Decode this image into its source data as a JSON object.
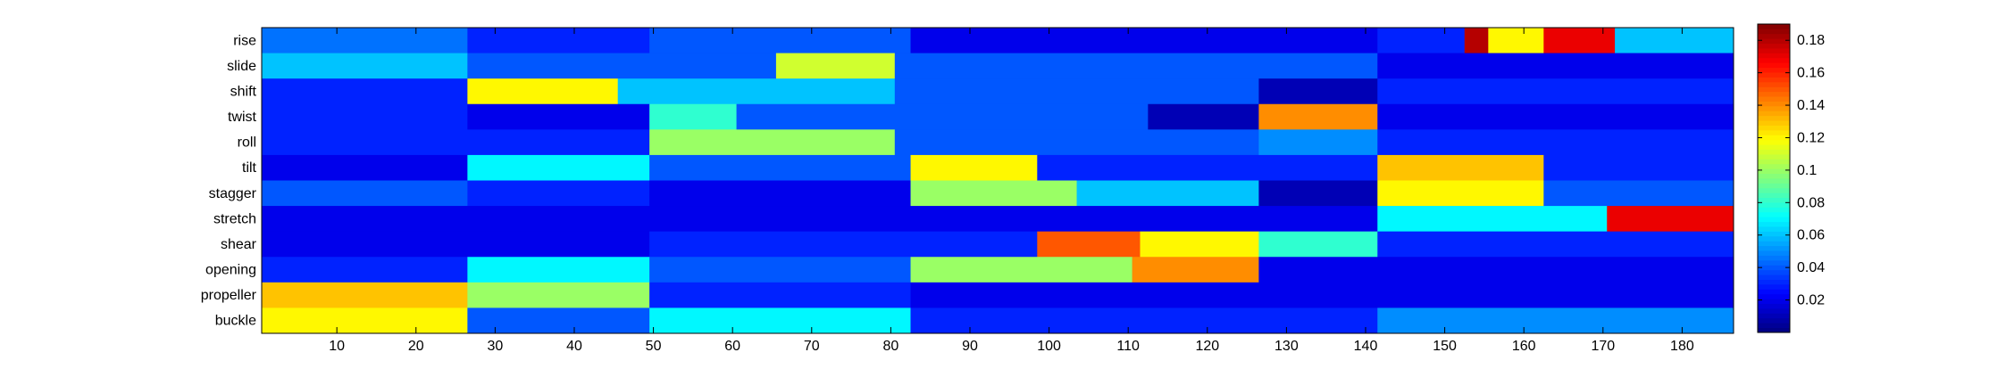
{
  "chart_data": {
    "type": "heatmap",
    "title": "",
    "xlabel": "",
    "ylabel": "",
    "rows": [
      "rise",
      "slide",
      "shift",
      "twist",
      "roll",
      "tilt",
      "stagger",
      "stretch",
      "shear",
      "opening",
      "propeller",
      "buckle"
    ],
    "x_range": [
      1,
      186
    ],
    "x_ticks": [
      10,
      20,
      30,
      40,
      50,
      60,
      70,
      80,
      90,
      100,
      110,
      120,
      130,
      140,
      150,
      160,
      170,
      180
    ],
    "colormap": "jet",
    "color_range": [
      0,
      0.19
    ],
    "colorbar_ticks": [
      0.02,
      0.04,
      0.06,
      0.08,
      0.1,
      0.12,
      0.14,
      0.16,
      0.18
    ],
    "colorbar_tick_labels": [
      "0.02",
      "0.04",
      "0.06",
      "0.08",
      "0.1",
      "0.12",
      "0.14",
      "0.16",
      "0.18"
    ],
    "blocks": [
      {
        "row": "rise",
        "x": [
          1,
          26
        ],
        "value": 0.045
      },
      {
        "row": "rise",
        "x": [
          27,
          49
        ],
        "value": 0.03
      },
      {
        "row": "rise",
        "x": [
          50,
          82
        ],
        "value": 0.04
      },
      {
        "row": "rise",
        "x": [
          83,
          141
        ],
        "value": 0.02
      },
      {
        "row": "rise",
        "x": [
          142,
          152
        ],
        "value": 0.03
      },
      {
        "row": "rise",
        "x": [
          153,
          155
        ],
        "value": 0.18
      },
      {
        "row": "rise",
        "x": [
          156,
          162
        ],
        "value": 0.12
      },
      {
        "row": "rise",
        "x": [
          163,
          171
        ],
        "value": 0.17
      },
      {
        "row": "rise",
        "x": [
          172,
          186
        ],
        "value": 0.06
      },
      {
        "row": "slide",
        "x": [
          1,
          26
        ],
        "value": 0.06
      },
      {
        "row": "slide",
        "x": [
          27,
          65
        ],
        "value": 0.04
      },
      {
        "row": "slide",
        "x": [
          66,
          80
        ],
        "value": 0.11
      },
      {
        "row": "slide",
        "x": [
          81,
          141
        ],
        "value": 0.04
      },
      {
        "row": "slide",
        "x": [
          142,
          186
        ],
        "value": 0.02
      },
      {
        "row": "shift",
        "x": [
          1,
          26
        ],
        "value": 0.03
      },
      {
        "row": "shift",
        "x": [
          27,
          45
        ],
        "value": 0.12
      },
      {
        "row": "shift",
        "x": [
          46,
          80
        ],
        "value": 0.06
      },
      {
        "row": "shift",
        "x": [
          81,
          126
        ],
        "value": 0.04
      },
      {
        "row": "shift",
        "x": [
          127,
          141
        ],
        "value": 0.01
      },
      {
        "row": "shift",
        "x": [
          142,
          186
        ],
        "value": 0.03
      },
      {
        "row": "twist",
        "x": [
          1,
          26
        ],
        "value": 0.03
      },
      {
        "row": "twist",
        "x": [
          27,
          49
        ],
        "value": 0.02
      },
      {
        "row": "twist",
        "x": [
          50,
          60
        ],
        "value": 0.08
      },
      {
        "row": "twist",
        "x": [
          61,
          112
        ],
        "value": 0.04
      },
      {
        "row": "twist",
        "x": [
          113,
          126
        ],
        "value": 0.01
      },
      {
        "row": "twist",
        "x": [
          127,
          141
        ],
        "value": 0.14
      },
      {
        "row": "twist",
        "x": [
          142,
          186
        ],
        "value": 0.02
      },
      {
        "row": "roll",
        "x": [
          1,
          49
        ],
        "value": 0.03
      },
      {
        "row": "roll",
        "x": [
          50,
          80
        ],
        "value": 0.1
      },
      {
        "row": "roll",
        "x": [
          81,
          126
        ],
        "value": 0.04
      },
      {
        "row": "roll",
        "x": [
          127,
          141
        ],
        "value": 0.05
      },
      {
        "row": "roll",
        "x": [
          142,
          186
        ],
        "value": 0.03
      },
      {
        "row": "tilt",
        "x": [
          1,
          26
        ],
        "value": 0.02
      },
      {
        "row": "tilt",
        "x": [
          27,
          49
        ],
        "value": 0.07
      },
      {
        "row": "tilt",
        "x": [
          50,
          82
        ],
        "value": 0.04
      },
      {
        "row": "tilt",
        "x": [
          83,
          98
        ],
        "value": 0.12
      },
      {
        "row": "tilt",
        "x": [
          99,
          141
        ],
        "value": 0.03
      },
      {
        "row": "tilt",
        "x": [
          142,
          162
        ],
        "value": 0.13
      },
      {
        "row": "tilt",
        "x": [
          163,
          186
        ],
        "value": 0.03
      },
      {
        "row": "stagger",
        "x": [
          1,
          26
        ],
        "value": 0.04
      },
      {
        "row": "stagger",
        "x": [
          27,
          49
        ],
        "value": 0.03
      },
      {
        "row": "stagger",
        "x": [
          50,
          82
        ],
        "value": 0.02
      },
      {
        "row": "stagger",
        "x": [
          83,
          103
        ],
        "value": 0.1
      },
      {
        "row": "stagger",
        "x": [
          104,
          126
        ],
        "value": 0.06
      },
      {
        "row": "stagger",
        "x": [
          127,
          141
        ],
        "value": 0.01
      },
      {
        "row": "stagger",
        "x": [
          142,
          162
        ],
        "value": 0.12
      },
      {
        "row": "stagger",
        "x": [
          163,
          186
        ],
        "value": 0.04
      },
      {
        "row": "stretch",
        "x": [
          1,
          141
        ],
        "value": 0.02
      },
      {
        "row": "stretch",
        "x": [
          142,
          170
        ],
        "value": 0.07
      },
      {
        "row": "stretch",
        "x": [
          171,
          186
        ],
        "value": 0.17
      },
      {
        "row": "shear",
        "x": [
          1,
          49
        ],
        "value": 0.02
      },
      {
        "row": "shear",
        "x": [
          50,
          98
        ],
        "value": 0.03
      },
      {
        "row": "shear",
        "x": [
          99,
          111
        ],
        "value": 0.15
      },
      {
        "row": "shear",
        "x": [
          112,
          126
        ],
        "value": 0.12
      },
      {
        "row": "shear",
        "x": [
          127,
          141
        ],
        "value": 0.08
      },
      {
        "row": "shear",
        "x": [
          142,
          186
        ],
        "value": 0.03
      },
      {
        "row": "opening",
        "x": [
          1,
          26
        ],
        "value": 0.03
      },
      {
        "row": "opening",
        "x": [
          27,
          49
        ],
        "value": 0.07
      },
      {
        "row": "opening",
        "x": [
          50,
          82
        ],
        "value": 0.04
      },
      {
        "row": "opening",
        "x": [
          83,
          110
        ],
        "value": 0.1
      },
      {
        "row": "opening",
        "x": [
          111,
          126
        ],
        "value": 0.14
      },
      {
        "row": "opening",
        "x": [
          127,
          186
        ],
        "value": 0.02
      },
      {
        "row": "propeller",
        "x": [
          1,
          26
        ],
        "value": 0.13
      },
      {
        "row": "propeller",
        "x": [
          27,
          49
        ],
        "value": 0.1
      },
      {
        "row": "propeller",
        "x": [
          50,
          82
        ],
        "value": 0.03
      },
      {
        "row": "propeller",
        "x": [
          83,
          141
        ],
        "value": 0.02
      },
      {
        "row": "propeller",
        "x": [
          142,
          186
        ],
        "value": 0.02
      },
      {
        "row": "buckle",
        "x": [
          1,
          26
        ],
        "value": 0.12
      },
      {
        "row": "buckle",
        "x": [
          27,
          49
        ],
        "value": 0.04
      },
      {
        "row": "buckle",
        "x": [
          50,
          82
        ],
        "value": 0.07
      },
      {
        "row": "buckle",
        "x": [
          83,
          141
        ],
        "value": 0.03
      },
      {
        "row": "buckle",
        "x": [
          142,
          186
        ],
        "value": 0.05
      }
    ]
  }
}
